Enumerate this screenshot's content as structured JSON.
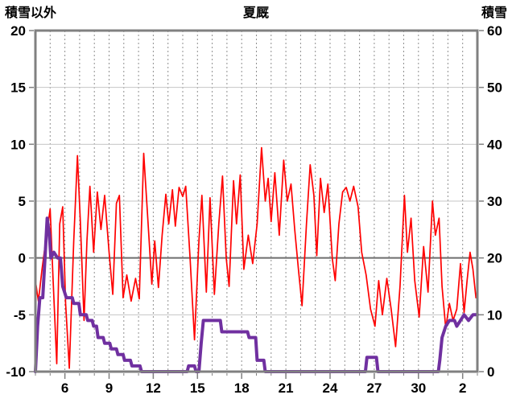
{
  "header": {
    "left_axis_title": "積雪以外",
    "title": "夏厩",
    "right_axis_title": "積雪"
  },
  "chart_data": {
    "type": "line",
    "title": "夏厩",
    "grid": true,
    "legend": "none",
    "left_axis": {
      "label": "積雪以外",
      "min": -10,
      "max": 20,
      "ticks": [
        20,
        15,
        10,
        5,
        0,
        -5,
        -10
      ]
    },
    "right_axis": {
      "label": "積雪",
      "min": 0,
      "max": 60,
      "ticks": [
        60,
        50,
        40,
        30,
        20,
        10,
        0
      ]
    },
    "x_axis": {
      "min": 0,
      "max": 30,
      "tick_labels": [
        "6",
        "9",
        "12",
        "15",
        "18",
        "21",
        "24",
        "27",
        "30",
        "2"
      ],
      "tick_positions": [
        2,
        5,
        8,
        11,
        14,
        17,
        20,
        23,
        26,
        29
      ],
      "day_gridline_step": 1
    },
    "zero_line_value": 0,
    "series": [
      {
        "key": "red-series-line",
        "axis": "left",
        "color": "#FF0000",
        "width": 1.7,
        "points": [
          [
            0,
            -2
          ],
          [
            0.2,
            -3.8
          ],
          [
            0.45,
            -1
          ],
          [
            0.7,
            1.5
          ],
          [
            1.0,
            4.3
          ],
          [
            1.2,
            -2
          ],
          [
            1.45,
            -9.3
          ],
          [
            1.65,
            3
          ],
          [
            1.85,
            4.5
          ],
          [
            2.05,
            -4
          ],
          [
            2.3,
            -9.7
          ],
          [
            2.6,
            1.5
          ],
          [
            2.85,
            9
          ],
          [
            3.05,
            3.2
          ],
          [
            3.3,
            -5.5
          ],
          [
            3.5,
            1.5
          ],
          [
            3.7,
            6.3
          ],
          [
            3.95,
            0.5
          ],
          [
            4.2,
            5.8
          ],
          [
            4.45,
            2.5
          ],
          [
            4.7,
            5.5
          ],
          [
            5.0,
            0.5
          ],
          [
            5.25,
            -3.2
          ],
          [
            5.5,
            4.8
          ],
          [
            5.7,
            5.5
          ],
          [
            5.95,
            -3.5
          ],
          [
            6.2,
            -1.5
          ],
          [
            6.5,
            -3.8
          ],
          [
            6.8,
            -1.8
          ],
          [
            7.05,
            -3.6
          ],
          [
            7.35,
            9.2
          ],
          [
            7.6,
            4
          ],
          [
            7.9,
            -2.3
          ],
          [
            8.1,
            1.5
          ],
          [
            8.35,
            -2.6
          ],
          [
            8.6,
            2
          ],
          [
            8.85,
            5.6
          ],
          [
            9.05,
            3
          ],
          [
            9.3,
            6
          ],
          [
            9.5,
            2.8
          ],
          [
            9.75,
            6.2
          ],
          [
            10.0,
            5.4
          ],
          [
            10.2,
            6.3
          ],
          [
            10.5,
            0
          ],
          [
            10.8,
            -7.2
          ],
          [
            11.1,
            1.5
          ],
          [
            11.3,
            5.5
          ],
          [
            11.6,
            -3
          ],
          [
            11.85,
            5.3
          ],
          [
            12.15,
            -3.2
          ],
          [
            12.45,
            3
          ],
          [
            12.7,
            7.2
          ],
          [
            12.95,
            0
          ],
          [
            13.15,
            -2.5
          ],
          [
            13.45,
            6.8
          ],
          [
            13.65,
            3
          ],
          [
            13.9,
            7.3
          ],
          [
            14.15,
            -1
          ],
          [
            14.45,
            2
          ],
          [
            14.75,
            -0.5
          ],
          [
            15.05,
            3
          ],
          [
            15.35,
            9.7
          ],
          [
            15.6,
            5
          ],
          [
            15.8,
            7
          ],
          [
            16.0,
            3.2
          ],
          [
            16.25,
            7.5
          ],
          [
            16.55,
            2
          ],
          [
            16.85,
            8.6
          ],
          [
            17.1,
            5
          ],
          [
            17.35,
            6.5
          ],
          [
            17.6,
            2.5
          ],
          [
            17.85,
            -1
          ],
          [
            18.1,
            -4.2
          ],
          [
            18.4,
            3
          ],
          [
            18.65,
            8.2
          ],
          [
            18.9,
            5.5
          ],
          [
            19.1,
            0.2
          ],
          [
            19.35,
            7
          ],
          [
            19.6,
            4
          ],
          [
            19.85,
            6.5
          ],
          [
            20.15,
            0
          ],
          [
            20.35,
            -2
          ],
          [
            20.6,
            3
          ],
          [
            20.85,
            5.8
          ],
          [
            21.1,
            6.2
          ],
          [
            21.35,
            5
          ],
          [
            21.6,
            6.3
          ],
          [
            21.9,
            4.5
          ],
          [
            22.15,
            0.5
          ],
          [
            22.45,
            -1.5
          ],
          [
            22.75,
            -4.5
          ],
          [
            23.05,
            -6
          ],
          [
            23.3,
            -2
          ],
          [
            23.55,
            -5
          ],
          [
            23.85,
            -1.8
          ],
          [
            24.15,
            -4.5
          ],
          [
            24.45,
            -7.8
          ],
          [
            24.75,
            -2.5
          ],
          [
            25.05,
            5.5
          ],
          [
            25.25,
            0.5
          ],
          [
            25.5,
            3.5
          ],
          [
            25.75,
            -2
          ],
          [
            26.05,
            -5.2
          ],
          [
            26.35,
            1
          ],
          [
            26.65,
            -3
          ],
          [
            26.95,
            5
          ],
          [
            27.15,
            2
          ],
          [
            27.4,
            3.5
          ],
          [
            27.6,
            -2.5
          ],
          [
            27.85,
            -6.2
          ],
          [
            28.1,
            -4
          ],
          [
            28.35,
            -5.5
          ],
          [
            28.6,
            -4.5
          ],
          [
            28.85,
            -0.5
          ],
          [
            29.1,
            -4.8
          ],
          [
            29.3,
            -2
          ],
          [
            29.5,
            0.5
          ],
          [
            29.7,
            -1
          ],
          [
            29.9,
            -3.5
          ],
          [
            30,
            -3
          ]
        ]
      },
      {
        "key": "purple-series-line",
        "axis": "right",
        "color": "#7030A0",
        "width": 4,
        "points": [
          [
            0,
            0
          ],
          [
            0.15,
            8
          ],
          [
            0.3,
            13
          ],
          [
            0.5,
            13
          ],
          [
            0.65,
            20
          ],
          [
            0.8,
            27
          ],
          [
            0.95,
            24
          ],
          [
            1.05,
            20
          ],
          [
            1.25,
            21
          ],
          [
            1.5,
            20
          ],
          [
            1.7,
            20
          ],
          [
            1.85,
            15
          ],
          [
            2.1,
            13
          ],
          [
            2.5,
            13
          ],
          [
            2.6,
            12
          ],
          [
            2.95,
            12
          ],
          [
            3.05,
            10
          ],
          [
            3.45,
            10
          ],
          [
            3.55,
            9
          ],
          [
            3.85,
            9
          ],
          [
            3.95,
            8
          ],
          [
            4.15,
            8
          ],
          [
            4.25,
            6
          ],
          [
            4.6,
            6
          ],
          [
            4.7,
            5
          ],
          [
            5.05,
            5
          ],
          [
            5.15,
            4
          ],
          [
            5.5,
            4
          ],
          [
            5.6,
            3
          ],
          [
            5.95,
            3
          ],
          [
            6.05,
            2
          ],
          [
            6.45,
            2
          ],
          [
            6.55,
            1
          ],
          [
            7.1,
            1
          ],
          [
            7.2,
            0
          ],
          [
            10.3,
            0
          ],
          [
            10.4,
            1
          ],
          [
            10.8,
            1
          ],
          [
            10.9,
            0
          ],
          [
            11.1,
            0
          ],
          [
            11.25,
            5
          ],
          [
            11.4,
            9
          ],
          [
            12.55,
            9
          ],
          [
            12.65,
            7
          ],
          [
            14.4,
            7
          ],
          [
            14.5,
            6
          ],
          [
            14.95,
            6
          ],
          [
            15.05,
            2
          ],
          [
            15.5,
            2
          ],
          [
            15.6,
            0
          ],
          [
            22.4,
            0
          ],
          [
            22.5,
            2.5
          ],
          [
            23.15,
            2.5
          ],
          [
            23.25,
            0
          ],
          [
            27.35,
            0
          ],
          [
            27.45,
            2
          ],
          [
            27.6,
            6
          ],
          [
            27.85,
            8
          ],
          [
            28.1,
            9
          ],
          [
            28.45,
            9
          ],
          [
            28.6,
            8
          ],
          [
            28.85,
            9
          ],
          [
            29.1,
            10
          ],
          [
            29.4,
            9
          ],
          [
            29.7,
            10
          ],
          [
            30,
            10
          ]
        ]
      }
    ],
    "colors": {
      "border": "#808080",
      "gridline": "#c6c6c6",
      "vertical_gridline": "#8f8f8f",
      "zero_line": "#6e6e6e",
      "red_series": "#FF0000",
      "purple_series": "#7030A0"
    }
  }
}
